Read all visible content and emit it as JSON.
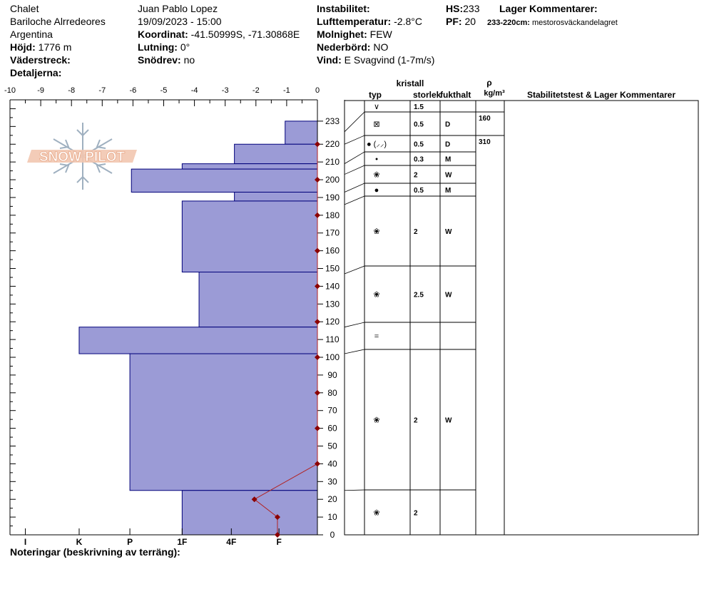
{
  "header": {
    "location": "Chalet",
    "region": "Bariloche Alrredeores",
    "country": "Argentina",
    "elevation_label": "Höjd:",
    "elevation_value": "1776 m",
    "aspect_label": "Väderstreck:",
    "aspect_value": "",
    "details_label": "Detaljerna:",
    "details_value": "",
    "observer": "Juan Pablo  Lopez",
    "datetime": "19/09/2023 - 15:00",
    "coord_label": "Koordinat:",
    "coord_value": "-41.50999S, -71.30868E",
    "slope_label": "Lutning:",
    "slope_value": "0°",
    "drift_label": "Snödrev:",
    "drift_value": "no",
    "instability_label": "Instabilitet:",
    "instability_value": "",
    "airtemp_label": "Lufttemperatur:",
    "airtemp_value": "-2.8°C",
    "sky_label": "Molnighet:",
    "sky_value": "FEW",
    "precip_label": "Nederbörd:",
    "precip_value": "NO",
    "wind_label": "Vind:",
    "wind_value": "E Svagvind (1-7m/s)",
    "hs_label": "HS:",
    "hs_value": "233",
    "pf_label": "PF:",
    "pf_value": "20",
    "layer_comments_label": "Lager Kommentarer:",
    "layer_comment_range": "233-220cm:",
    "layer_comment_text": "mestorosväckandelagret"
  },
  "footer": {
    "notes_label": "Noteringar (beskrivning av terräng):"
  },
  "logo": {
    "text": "SNOW PILOT",
    "icon": "snowflake-icon"
  },
  "table": {
    "crystal_header": "kristall",
    "type_header": "typ",
    "size_header": "storlek",
    "moisture_header": "fukthalt",
    "density_symbol": "ρ",
    "density_unit": "kg/m³",
    "comments_header": "Stabilitetstest & Lager Kommentarer"
  },
  "colors": {
    "hardness_fill": "#9b9bd6",
    "hardness_stroke": "#00007a",
    "temp_line": "#b22222",
    "temp_marker": "#8b0000"
  },
  "chart_data": {
    "type": "bar",
    "hardness_axis": {
      "ticks": [
        "-10",
        "-9",
        "-8",
        "-7",
        "-6",
        "-5",
        "-4",
        "-3",
        "-2",
        "-1",
        "0"
      ],
      "tick_values": [
        -10,
        -9,
        -8,
        -7,
        -6,
        -5,
        -4,
        -3,
        -2,
        -1,
        0
      ],
      "categories": [
        "I",
        "K",
        "P",
        "1F",
        "4F",
        "F"
      ],
      "category_values": [
        -9.5,
        -7.75,
        -6.1,
        -4.4,
        -2.8,
        -1.25
      ],
      "range": [
        -10,
        0
      ]
    },
    "height_axis": {
      "range": [
        0,
        245
      ],
      "ticks": [
        0,
        10,
        20,
        30,
        40,
        50,
        60,
        70,
        80,
        90,
        100,
        110,
        120,
        130,
        140,
        150,
        160,
        170,
        180,
        190,
        200,
        210,
        220,
        233
      ]
    },
    "hardness_profile": [
      {
        "top": 233,
        "bottom": 220,
        "hardness": -1.05
      },
      {
        "top": 220,
        "bottom": 209,
        "hardness": -2.7
      },
      {
        "top": 209,
        "bottom": 206,
        "hardness": -4.4
      },
      {
        "top": 206,
        "bottom": 193,
        "hardness": -6.05
      },
      {
        "top": 193,
        "bottom": 188,
        "hardness": -2.7
      },
      {
        "top": 188,
        "bottom": 148,
        "hardness": -4.4
      },
      {
        "top": 148,
        "bottom": 117,
        "hardness": -3.85
      },
      {
        "top": 117,
        "bottom": 102,
        "hardness": -7.75
      },
      {
        "top": 102,
        "bottom": 25,
        "hardness": -6.1
      },
      {
        "top": 25,
        "bottom": 0,
        "hardness": -4.4
      }
    ],
    "temperature_profile": [
      {
        "height": 0,
        "temp": -1.3
      },
      {
        "height": 10,
        "temp": -1.3
      },
      {
        "height": 20,
        "temp": -2.05
      },
      {
        "height": 40,
        "temp": 0
      },
      {
        "height": 60,
        "temp": 0
      },
      {
        "height": 80,
        "temp": 0
      },
      {
        "height": 100,
        "temp": 0
      },
      {
        "height": 120,
        "temp": 0
      },
      {
        "height": 140,
        "temp": 0
      },
      {
        "height": 160,
        "temp": 0
      },
      {
        "height": 180,
        "temp": 0
      },
      {
        "height": 200,
        "temp": 0
      },
      {
        "height": 220,
        "temp": 0
      }
    ],
    "layers": [
      {
        "top": 233,
        "bottom": 227,
        "grain": "∨",
        "size": "1.5",
        "moisture": ""
      },
      {
        "top": 227,
        "bottom": 220,
        "grain": "⊠",
        "size": "0.5",
        "moisture": "D"
      },
      {
        "top": 220,
        "bottom": 209,
        "grain": "● (⸝⸝)",
        "size": "0.5",
        "moisture": "D"
      },
      {
        "top": 209,
        "bottom": 203,
        "grain": "•",
        "size": "0.3",
        "moisture": "M"
      },
      {
        "top": 203,
        "bottom": 193,
        "grain": "❀",
        "size": "2",
        "moisture": "W"
      },
      {
        "top": 193,
        "bottom": 186,
        "grain": "●",
        "size": "0.5",
        "moisture": "M"
      },
      {
        "top": 186,
        "bottom": 147,
        "grain": "❀",
        "size": "2",
        "moisture": "W"
      },
      {
        "top": 147,
        "bottom": 117,
        "grain": "❀",
        "size": "2.5",
        "moisture": "W"
      },
      {
        "top": 117,
        "bottom": 102,
        "grain": "=",
        "size": "",
        "moisture": ""
      },
      {
        "top": 102,
        "bottom": 25,
        "grain": "❀",
        "size": "2",
        "moisture": "W"
      },
      {
        "top": 25,
        "bottom": 0,
        "grain": "❀",
        "size": "2",
        "moisture": ""
      }
    ],
    "densities": [
      {
        "top": 233,
        "bottom": 220,
        "value": "160"
      },
      {
        "top": 220,
        "bottom": 0,
        "value": "310"
      }
    ]
  }
}
